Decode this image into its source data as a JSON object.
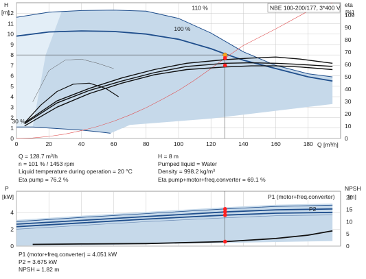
{
  "chart_data": [
    {
      "type": "line",
      "title": "NBE 100-200/177, 3*400 V",
      "xlabel": "Q [m³/h]",
      "ylabel_left_unit": "H",
      "ylabel_left_bracket": "[m]",
      "ylabel_right_unit": "eta",
      "ylabel_right_bracket": "[%]",
      "xlim": [
        0,
        200
      ],
      "ylim_left": [
        0,
        13
      ],
      "ylim_right": [
        0,
        110
      ],
      "xticks": [
        "0",
        "20",
        "40",
        "60",
        "80",
        "100",
        "120",
        "140",
        "160",
        "180"
      ],
      "yticks_left": [
        "0",
        "1",
        "2",
        "3",
        "4",
        "5",
        "6",
        "7",
        "8",
        "9",
        "10",
        "11",
        "12"
      ],
      "yticks_right": [
        "0",
        "10",
        "20",
        "30",
        "40",
        "50",
        "60",
        "70",
        "80",
        "90",
        "100"
      ],
      "grid": true,
      "curve_labels": [
        {
          "text": "110 %",
          "x": 126,
          "y": 12.3
        },
        {
          "text": "100 %",
          "x": 115,
          "y": 10.3
        },
        {
          "text": "30 %",
          "x": 15,
          "y": 1.45
        }
      ],
      "series": [
        {
          "values_x": [
            0,
            20,
            40,
            60,
            80,
            100,
            120,
            140,
            160,
            180,
            195
          ],
          "values_y": [
            11.6,
            12.1,
            12.25,
            12.3,
            12.2,
            11.5,
            10.1,
            8.3,
            7.0,
            6.2,
            5.9
          ],
          "color": "#1f4e8c",
          "width": 1
        },
        {
          "values_x": [
            0,
            20,
            40,
            60,
            80,
            100,
            120,
            128.7,
            140,
            160,
            180,
            195
          ],
          "values_y": [
            9.8,
            10.2,
            10.3,
            10.25,
            10.0,
            9.5,
            8.6,
            8.1,
            7.5,
            6.7,
            5.9,
            5.5
          ],
          "color": "#1f4e8c",
          "width": 1.8
        },
        {
          "values_x": [
            0,
            10,
            20,
            30,
            40,
            50,
            58
          ],
          "values_y": [
            1.1,
            1.1,
            1.0,
            0.9,
            0.8,
            0.65,
            0.5
          ],
          "color": "#1f4e8c",
          "width": 1
        },
        {
          "values_x": [
            0,
            10,
            20,
            30,
            40,
            50,
            60,
            70,
            80,
            90,
            100,
            110,
            120,
            128.7,
            140,
            160,
            180,
            195
          ],
          "values_y": [
            0,
            0.05,
            0.2,
            0.42,
            0.75,
            1.15,
            1.65,
            2.25,
            2.95,
            3.75,
            4.6,
            5.6,
            6.7,
            7.7,
            8.9,
            10.5,
            12.2,
            13.0
          ],
          "color": "#e05050",
          "width": 0.6
        },
        {
          "values_x": [
            10,
            20,
            30,
            40,
            50,
            60
          ],
          "values_y": [
            3.5,
            6.5,
            7.5,
            7.6,
            7.2,
            6.7
          ],
          "color": "#555555",
          "width": 0.5
        },
        {
          "values_x": [
            5,
            15,
            25,
            35,
            45,
            55,
            63
          ],
          "values_y": [
            1.5,
            3.2,
            4.5,
            5.2,
            5.3,
            4.8,
            4.0
          ],
          "color": "#111111",
          "width": 1.2
        },
        {
          "values_x": [
            5,
            25,
            45,
            65,
            85,
            105,
            128.7,
            145,
            160,
            175,
            195
          ],
          "values_y": [
            1.5,
            3.6,
            4.8,
            5.8,
            6.6,
            7.2,
            7.55,
            7.7,
            7.8,
            7.6,
            7.2
          ],
          "color": "#111111",
          "width": 1.4
        },
        {
          "values_x": [
            5,
            25,
            45,
            65,
            85,
            105,
            128.7,
            145,
            160,
            175,
            195
          ],
          "values_y": [
            1.4,
            3.4,
            4.6,
            5.5,
            6.3,
            6.9,
            7.2,
            7.25,
            7.2,
            7.1,
            6.9
          ],
          "color": "#111111",
          "width": 1.4
        },
        {
          "values_x": [
            5,
            25,
            45,
            65,
            85,
            105,
            128.7,
            145,
            160,
            175,
            195
          ],
          "values_y": [
            1.2,
            3.0,
            4.3,
            5.3,
            6.1,
            6.6,
            6.85,
            6.95,
            6.95,
            6.85,
            6.6
          ],
          "color": "#111111",
          "width": 1.4
        }
      ],
      "eta_curve": {
        "values_x": [
          128.7
        ],
        "values_y": [
          76.2
        ]
      },
      "duty_point_h": {
        "x": 128.7,
        "y": 8.0
      },
      "duty_markers_h": [
        7.7,
        7.0
      ]
    },
    {
      "type": "line",
      "ylabel_left_unit": "P",
      "ylabel_left_bracket": "[kW]",
      "ylabel_right_unit": "NPSH",
      "ylabel_right_bracket": "[m]",
      "xlim": [
        0,
        200
      ],
      "ylim_left": [
        0,
        6.5
      ],
      "ylim_right": [
        0,
        22.5
      ],
      "yticks_left": [
        "0",
        "2",
        "4"
      ],
      "yticks_right": [
        "0",
        "5",
        "10",
        "15",
        "20"
      ],
      "grid": true,
      "legend": [
        {
          "text": "P1 (motor+freq.converter)",
          "x": 175,
          "y": 5.2
        },
        {
          "text": "P2",
          "x": 175,
          "y": 3.9
        }
      ],
      "series": [
        {
          "values_x": [
            0,
            40,
            80,
            128.7,
            160,
            195
          ],
          "values_y": [
            2.6,
            3.05,
            3.5,
            4.05,
            4.3,
            4.4
          ],
          "color": "#1f4e8c",
          "width": 1.8
        },
        {
          "values_x": [
            0,
            40,
            80,
            128.7,
            160,
            195
          ],
          "values_y": [
            2.3,
            2.75,
            3.2,
            3.675,
            3.9,
            4.0
          ],
          "color": "#1f4e8c",
          "width": 1.8
        },
        {
          "values_x": [
            0,
            40,
            80,
            128.7,
            160,
            195
          ],
          "values_y": [
            2.9,
            3.4,
            3.85,
            4.4,
            4.7,
            4.85
          ],
          "color": "#1f4e8c",
          "width": 0.8
        },
        {
          "values_x": [
            0,
            40,
            80,
            128.7,
            160,
            195
          ],
          "values_y": [
            2.0,
            2.45,
            2.9,
            3.35,
            3.6,
            3.7
          ],
          "color": "#6a8ab5",
          "width": 0.7
        },
        {
          "values_x": [
            10,
            40,
            80,
            128.7,
            160,
            180,
            195
          ],
          "values_y": [
            0.2,
            0.25,
            0.3,
            0.53,
            0.9,
            1.3,
            1.8
          ],
          "color": "#111111",
          "width": 1.8
        }
      ],
      "duty_markers": [
        4.4,
        4.05,
        3.675,
        0.53
      ]
    }
  ],
  "info_top": {
    "q": "Q = 128.7 m³/h",
    "n": "n = 101 % / 1453 rpm",
    "liquid_temp": "Liquid temperature during operation = 20 °C",
    "eta_pump": "Eta pump = 76.2 %",
    "h": "H = 8 m",
    "pumped_liquid": "Pumped liquid = Water",
    "density": "Density = 998.2 kg/m³",
    "eta_total": "Eta pump+motor+freq.converter = 69.1 %"
  },
  "info_bottom": {
    "p1": "P1 (motor+freq.converter) = 4.051 kW",
    "p2": "P2 = 3.675 kW",
    "npsh": "NPSH = 1.82 m"
  },
  "colors": {
    "area_fill": "#c6d9ea",
    "area_light": "#e3eef7",
    "curve_blue": "#1f4e8c",
    "duty_red": "#ff2020",
    "duty_orange": "#f5a623",
    "grid": "#c9c9c9"
  }
}
